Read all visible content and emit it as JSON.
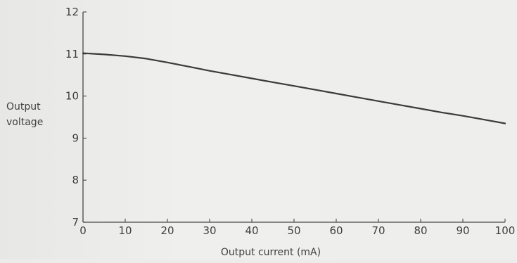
{
  "chart_data": {
    "type": "line",
    "title": "",
    "xlabel": "Output current (mA)",
    "ylabel_lines": [
      "Output",
      "voltage"
    ],
    "xlim": [
      0,
      100
    ],
    "ylim": [
      7,
      12
    ],
    "x_ticks": [
      0,
      10,
      20,
      30,
      40,
      50,
      60,
      70,
      80,
      90,
      100
    ],
    "x_tick_labels": [
      "0",
      "10",
      "20",
      "30",
      "40",
      "50",
      "60",
      "70",
      "80",
      "90",
      "100"
    ],
    "y_ticks": [
      7,
      8,
      9,
      10,
      11,
      12
    ],
    "y_tick_labels": [
      "7",
      "8",
      "9",
      "10",
      "11",
      "12"
    ],
    "grid": false,
    "legend": "none",
    "series": [
      {
        "x": [
          0,
          5,
          10,
          15,
          20,
          25,
          30,
          35,
          40,
          45,
          50,
          55,
          60,
          65,
          70,
          75,
          80,
          85,
          90,
          95,
          100
        ],
        "y": [
          11.02,
          10.99,
          10.95,
          10.89,
          10.8,
          10.7,
          10.6,
          10.51,
          10.42,
          10.33,
          10.24,
          10.15,
          10.06,
          9.97,
          9.88,
          9.79,
          9.7,
          9.61,
          9.53,
          9.44,
          9.35
        ]
      }
    ]
  }
}
